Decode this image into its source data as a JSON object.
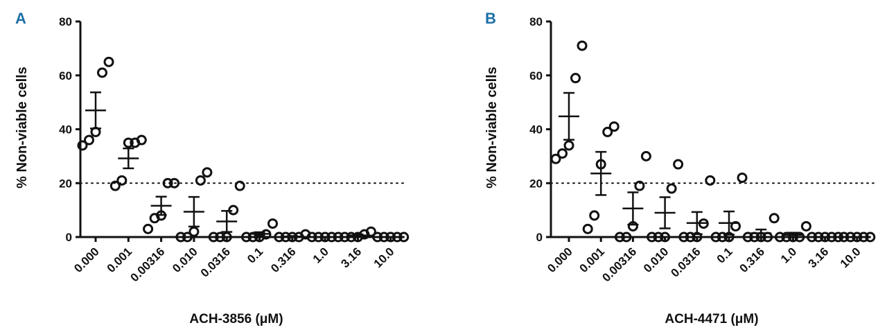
{
  "colors": {
    "panel_letter": "#1b6fa8",
    "ink": "#111111",
    "background": "#ffffff"
  },
  "chart_data": [
    {
      "type": "scatter",
      "panel": "A",
      "title": "",
      "xlabel": "ACH-3856 (μM)",
      "ylabel": "% Non-viable cells",
      "ylim": [
        0,
        80
      ],
      "yticks": [
        "0",
        "20",
        "40",
        "60",
        "80"
      ],
      "threshold": 20,
      "categories": [
        "0.000",
        "0.001",
        "0.00316",
        "0.010",
        "0.0316",
        "0.1",
        "0.316",
        "1.0",
        "3.16",
        "10.0"
      ],
      "points": [
        [
          34,
          36,
          39,
          61,
          65
        ],
        [
          19,
          21,
          35,
          35,
          36
        ],
        [
          3,
          7,
          8,
          20,
          20
        ],
        [
          0,
          0,
          2,
          21,
          24
        ],
        [
          0,
          0,
          0,
          10,
          19
        ],
        [
          0,
          0,
          0,
          1,
          5
        ],
        [
          0,
          0,
          0,
          0,
          1
        ],
        [
          0,
          0,
          0,
          0,
          0
        ],
        [
          0,
          0,
          0,
          1,
          2
        ],
        [
          0,
          0,
          0,
          0,
          0
        ]
      ],
      "mean": [
        47,
        29.2,
        11.6,
        9.4,
        5.8,
        1.2,
        0.2,
        0,
        0.6,
        0
      ],
      "sem": [
        6.7,
        3.7,
        3.4,
        5.5,
        3.9,
        0.6,
        0.2,
        0,
        0.4,
        0
      ]
    },
    {
      "type": "scatter",
      "panel": "B",
      "title": "",
      "xlabel": "ACH-4471 (μM)",
      "ylabel": "% Non-viable cells",
      "ylim": [
        0,
        80
      ],
      "yticks": [
        "0",
        "20",
        "40",
        "60",
        "80"
      ],
      "threshold": 20,
      "categories": [
        "0.000",
        "0.001",
        "0.00316",
        "0.010",
        "0.0316",
        "0.1",
        "0.316",
        "1.0",
        "3.16",
        "10.0"
      ],
      "points": [
        [
          29,
          31,
          34,
          59,
          71
        ],
        [
          3,
          8,
          27,
          39,
          41
        ],
        [
          0,
          0,
          4,
          19,
          30
        ],
        [
          0,
          0,
          0,
          18,
          27
        ],
        [
          0,
          0,
          0,
          5,
          21
        ],
        [
          0,
          0,
          0,
          4,
          22
        ],
        [
          0,
          0,
          0,
          0,
          7
        ],
        [
          0,
          0,
          0,
          0,
          4
        ],
        [
          0,
          0,
          0,
          0,
          0
        ],
        [
          0,
          0,
          0,
          0,
          0
        ]
      ],
      "mean": [
        44.8,
        23.6,
        10.6,
        9,
        5.2,
        5.2,
        1.4,
        0.8,
        0,
        0
      ],
      "sem": [
        8.7,
        8,
        6,
        5.8,
        4.1,
        4.3,
        1.4,
        0.8,
        0,
        0
      ]
    }
  ]
}
